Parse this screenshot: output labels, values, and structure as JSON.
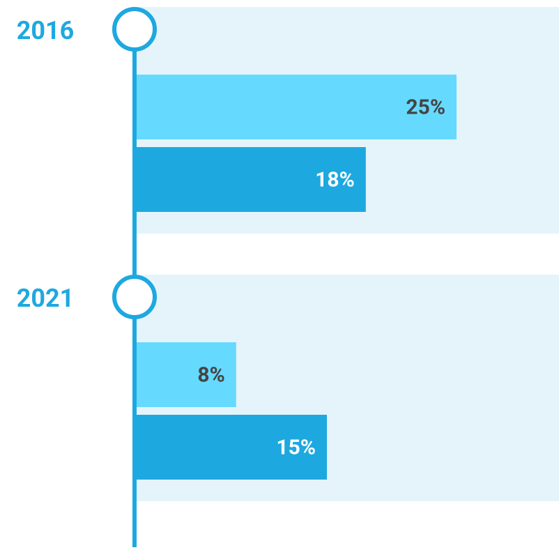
{
  "chart_data": {
    "type": "bar",
    "orientation": "horizontal",
    "categories": [
      "2016",
      "2021"
    ],
    "series": [
      {
        "color": "#66d9fe",
        "values": [
          25,
          8
        ],
        "value_labels": [
          "25%",
          "8%"
        ]
      },
      {
        "color": "#1ea8e0",
        "values": [
          18,
          15
        ],
        "value_labels": [
          "18%",
          "15%"
        ]
      }
    ]
  }
}
